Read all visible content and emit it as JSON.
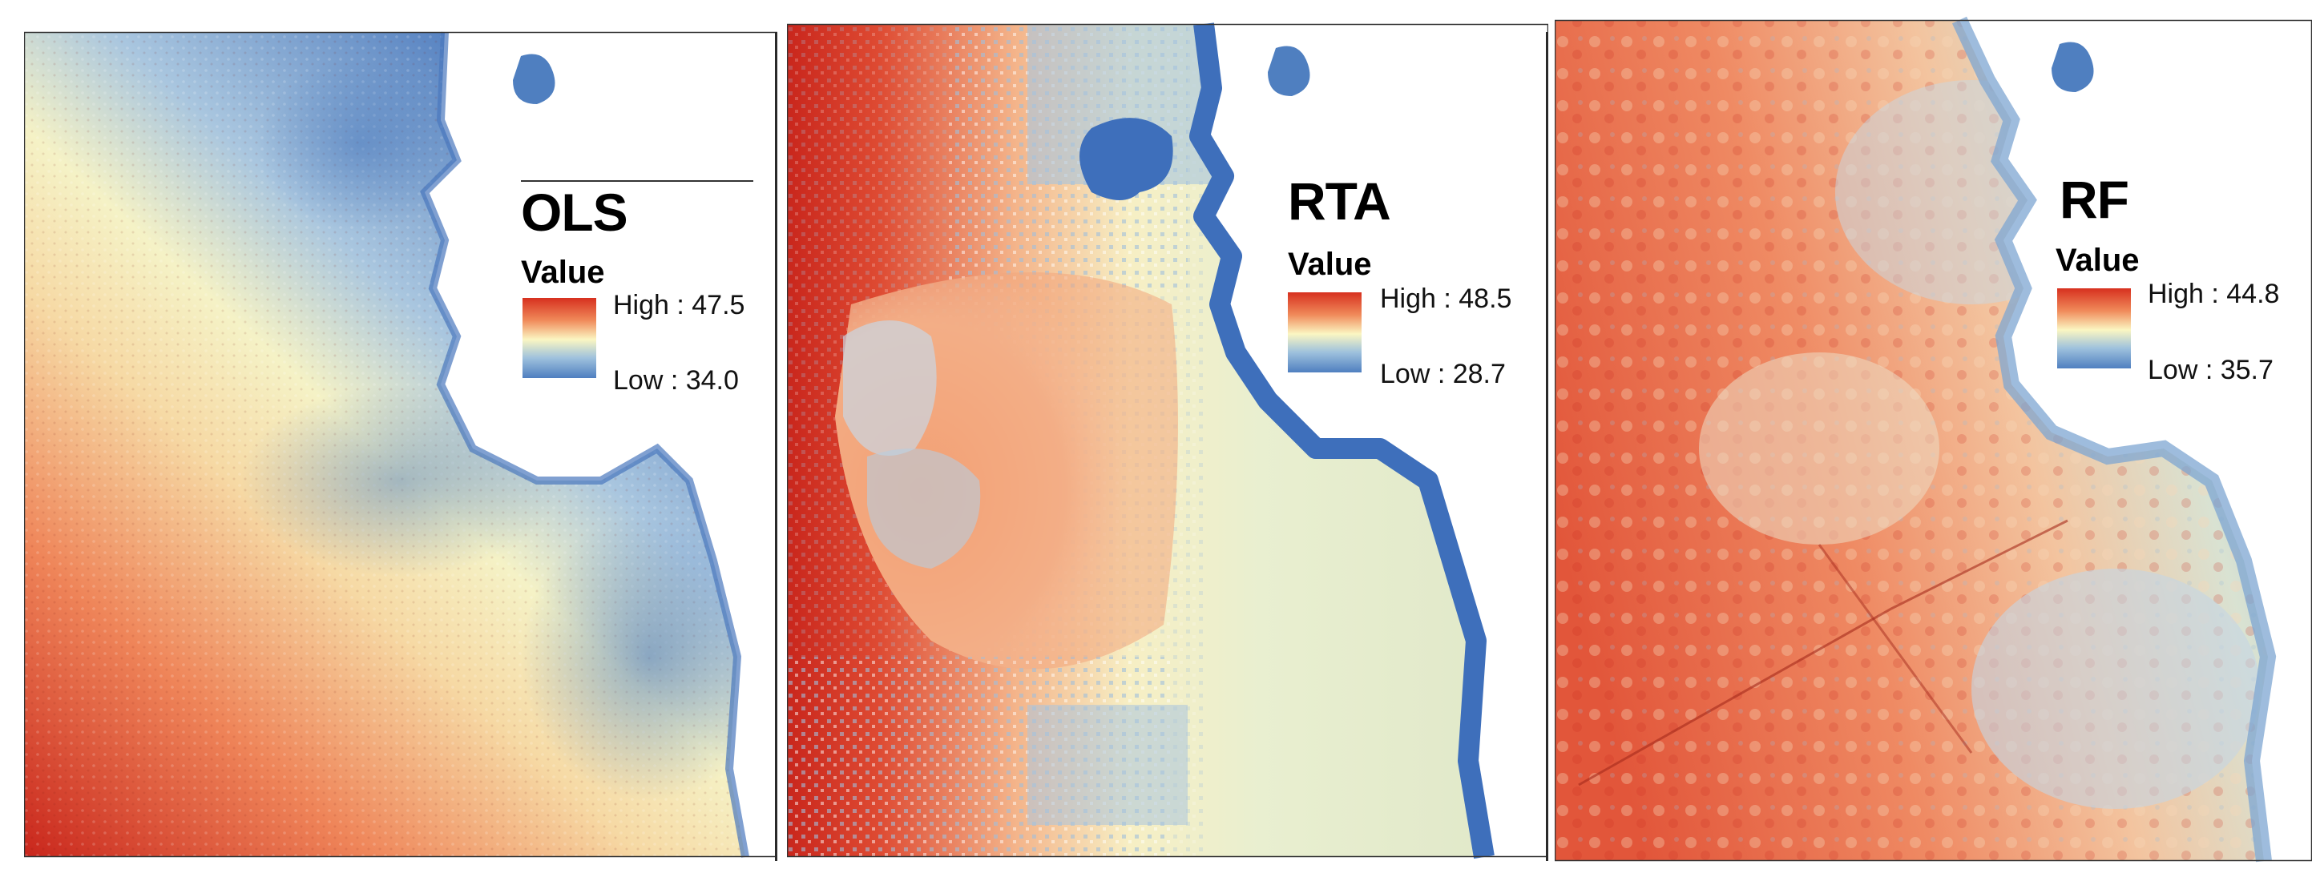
{
  "maps": [
    {
      "id": "ols",
      "title": "OLS",
      "legend_header": "Value",
      "high_label": "High : 47.5",
      "low_label": "Low : 34.0",
      "high_value": 47.5,
      "low_value": 34.0
    },
    {
      "id": "rta",
      "title": "RTA",
      "legend_header": "Value",
      "high_label": "High : 48.5",
      "low_label": "Low : 28.7",
      "high_value": 48.5,
      "low_value": 28.7
    },
    {
      "id": "rf",
      "title": "RF",
      "legend_header": "Value",
      "high_label": "High : 44.8",
      "low_label": "Low : 35.7",
      "high_value": 44.8,
      "low_value": 35.7
    }
  ],
  "colors": {
    "high": "#d7301f",
    "mid": "#fbf6c2",
    "low": "#4f7fc0",
    "water": "#ffffff"
  }
}
